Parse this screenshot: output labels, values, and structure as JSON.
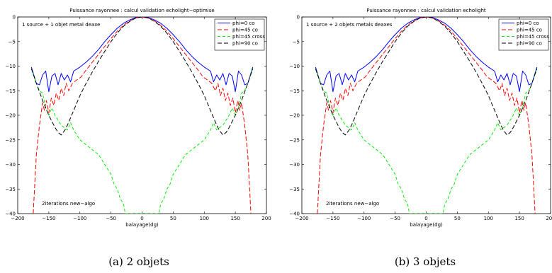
{
  "chart_data": [
    {
      "type": "line",
      "title": "Puissance rayonnee : calcul validation echolight−optimise",
      "xlabel": "balayage(dg)",
      "ylabel": "",
      "xlim": [
        -200,
        200
      ],
      "ylim": [
        -40,
        0
      ],
      "xticks": [
        "−200",
        "−150",
        "−100",
        "−50",
        "0",
        "50",
        "100",
        "150",
        "200"
      ],
      "yticks": [
        "0",
        "−5",
        "−10",
        "−15",
        "−20",
        "−25",
        "−30",
        "−35",
        "−40"
      ],
      "annotations": [
        "1 source + 1 objet metal deaxe",
        "2iterations new−algo"
      ],
      "legend_position": "top-right",
      "caption": "(a) 2 objets",
      "series": [
        {
          "name": "phi=0 co",
          "color": "#0000ff",
          "dash": "solid",
          "x": [
            -178,
            -170,
            -165,
            -160,
            -155,
            -150,
            -145,
            -140,
            -135,
            -130,
            -125,
            -120,
            -115,
            -110,
            -100,
            -90,
            -80,
            -70,
            -60,
            -50,
            -40,
            -30,
            -20,
            -10,
            0,
            10,
            20,
            30,
            40,
            50,
            60,
            70,
            80,
            90,
            100,
            110,
            115,
            120,
            125,
            130,
            135,
            140,
            145,
            150,
            155,
            160,
            165,
            170,
            178
          ],
          "y": [
            -10.2,
            -13.5,
            -13.8,
            -11.8,
            -11.0,
            -15.2,
            -12.0,
            -11.5,
            -13.8,
            -11.5,
            -12.8,
            -11.8,
            -13.2,
            -11.0,
            -10.2,
            -9.2,
            -8.0,
            -6.6,
            -5.0,
            -3.6,
            -2.3,
            -1.3,
            -0.6,
            -0.1,
            0,
            -0.1,
            -0.6,
            -1.3,
            -2.3,
            -3.6,
            -5.0,
            -6.6,
            -8.0,
            -9.2,
            -10.2,
            -11.0,
            -13.2,
            -11.8,
            -12.8,
            -11.5,
            -13.8,
            -11.5,
            -12.0,
            -15.2,
            -11.0,
            -11.8,
            -13.8,
            -13.5,
            -10.2
          ]
        },
        {
          "name": "phi=45 co",
          "color": "#ff0000",
          "dash": "6,3",
          "x": [
            -175,
            -173,
            -170,
            -165,
            -160,
            -157,
            -154,
            -150,
            -146,
            -142,
            -138,
            -134,
            -130,
            -126,
            -122,
            -118,
            -112,
            -105,
            -98,
            -90,
            -80,
            -70,
            -60,
            -50,
            -40,
            -30,
            -20,
            -10,
            0,
            10,
            20,
            30,
            40,
            50,
            60,
            70,
            80,
            90,
            98,
            105,
            112,
            118,
            122,
            126,
            130,
            134,
            138,
            142,
            146,
            150,
            154,
            157,
            160,
            165,
            170,
            173,
            175
          ],
          "y": [
            -40,
            -35,
            -28,
            -22,
            -17.5,
            -19,
            -17,
            -19.5,
            -16.5,
            -18,
            -15.5,
            -17,
            -14.5,
            -16,
            -13.5,
            -15,
            -13.5,
            -12.8,
            -12.2,
            -10.8,
            -9.2,
            -7.6,
            -6.0,
            -4.4,
            -2.9,
            -1.7,
            -0.8,
            -0.2,
            0,
            -0.2,
            -0.8,
            -1.7,
            -2.9,
            -4.4,
            -6.0,
            -7.6,
            -9.2,
            -10.8,
            -12.2,
            -12.8,
            -13.5,
            -15,
            -13.5,
            -16,
            -14.5,
            -17,
            -15.5,
            -18,
            -16.5,
            -19.5,
            -17,
            -19,
            -17.5,
            -22,
            -28,
            -35,
            -40
          ]
        },
        {
          "name": "phi=45 cross",
          "color": "#00ee00",
          "dash": "4,3",
          "x": [
            -178,
            -170,
            -165,
            -160,
            -155,
            -150,
            -145,
            -140,
            -135,
            -130,
            -125,
            -120,
            -115,
            -110,
            -100,
            -90,
            -80,
            -70,
            -60,
            -55,
            -50,
            -45,
            -40,
            -35,
            -30,
            -27,
            -25,
            25,
            27,
            30,
            35,
            40,
            45,
            50,
            55,
            60,
            70,
            80,
            90,
            100,
            110,
            115,
            120,
            125,
            130,
            135,
            140,
            145,
            150,
            155,
            160,
            165,
            170,
            178
          ],
          "y": [
            -10.5,
            -13.5,
            -15,
            -15.5,
            -18.5,
            -20,
            -18.5,
            -20,
            -21,
            -22,
            -22.5,
            -23,
            -21.5,
            -23,
            -25,
            -26,
            -27,
            -28,
            -30,
            -31,
            -32,
            -34,
            -35,
            -37,
            -38,
            -40,
            -40,
            -40,
            -40,
            -38,
            -37,
            -35,
            -34,
            -32,
            -31,
            -30,
            -28,
            -27,
            -26,
            -25,
            -23,
            -21.5,
            -23,
            -22.5,
            -22,
            -21,
            -20,
            -18.5,
            -20,
            -18.5,
            -15.5,
            -15,
            -13.5,
            -10.5
          ]
        },
        {
          "name": "phi=90 co",
          "color": "#000000",
          "dash": "6,3",
          "x": [
            -178,
            -170,
            -160,
            -150,
            -140,
            -135,
            -130,
            -127,
            -124,
            -120,
            -115,
            -110,
            -105,
            -100,
            -90,
            -80,
            -70,
            -60,
            -50,
            -40,
            -30,
            -20,
            -10,
            0,
            10,
            20,
            30,
            40,
            50,
            60,
            70,
            80,
            90,
            100,
            105,
            110,
            115,
            120,
            124,
            127,
            130,
            135,
            140,
            150,
            160,
            170,
            178
          ],
          "y": [
            -10.5,
            -13.5,
            -17,
            -20,
            -22.5,
            -23.5,
            -24,
            -23.5,
            -23,
            -22,
            -20.5,
            -19,
            -17.5,
            -16,
            -13.5,
            -11.2,
            -9.0,
            -7.0,
            -5.0,
            -3.3,
            -1.9,
            -0.9,
            -0.2,
            0,
            -0.2,
            -0.9,
            -1.9,
            -3.3,
            -5.0,
            -7.0,
            -9.0,
            -11.2,
            -13.5,
            -16,
            -17.5,
            -19,
            -20.5,
            -22,
            -23,
            -23.5,
            -24,
            -23.5,
            -22.5,
            -20,
            -17,
            -13.5,
            -10.5
          ]
        }
      ]
    },
    {
      "type": "line",
      "title": "Puissance rayonnee : calcul validation echolight",
      "xlabel": "balayage(dg)",
      "ylabel": "",
      "xlim": [
        -200,
        200
      ],
      "ylim": [
        -40,
        0
      ],
      "xticks": [
        "−200",
        "−150",
        "−100",
        "−50",
        "0",
        "50",
        "100",
        "150",
        "200"
      ],
      "yticks": [
        "0",
        "−5",
        "−10",
        "−15",
        "−20",
        "−25",
        "−30",
        "−35",
        "−40"
      ],
      "annotations": [
        "1 source + 2 objets metals deaxes",
        "2iterations new−algo"
      ],
      "legend_position": "top-right",
      "caption": "(b) 3 objets",
      "series": [
        {
          "name": "phi=0 co",
          "color": "#0000ff",
          "dash": "solid",
          "x": [
            -178,
            -170,
            -165,
            -160,
            -155,
            -150,
            -145,
            -140,
            -135,
            -130,
            -125,
            -120,
            -115,
            -110,
            -100,
            -90,
            -80,
            -70,
            -60,
            -50,
            -40,
            -30,
            -20,
            -10,
            0,
            10,
            20,
            30,
            40,
            50,
            60,
            70,
            80,
            90,
            100,
            110,
            115,
            120,
            125,
            130,
            135,
            140,
            145,
            150,
            155,
            160,
            165,
            170,
            178
          ],
          "y": [
            -10.2,
            -13.5,
            -13.8,
            -11.8,
            -11.0,
            -15.2,
            -12.0,
            -11.5,
            -13.8,
            -11.5,
            -12.8,
            -11.8,
            -13.2,
            -11.0,
            -10.2,
            -9.2,
            -8.0,
            -6.6,
            -5.0,
            -3.6,
            -2.3,
            -1.3,
            -0.6,
            -0.1,
            0,
            -0.1,
            -0.6,
            -1.3,
            -2.3,
            -3.6,
            -5.0,
            -6.6,
            -8.0,
            -9.2,
            -10.2,
            -11.0,
            -13.2,
            -11.8,
            -12.8,
            -11.5,
            -13.8,
            -11.5,
            -12.0,
            -15.2,
            -11.0,
            -11.8,
            -13.8,
            -13.5,
            -10.2
          ]
        },
        {
          "name": "phi=45 co",
          "color": "#ff0000",
          "dash": "6,3",
          "x": [
            -175,
            -173,
            -170,
            -165,
            -160,
            -157,
            -154,
            -150,
            -146,
            -142,
            -138,
            -134,
            -130,
            -126,
            -122,
            -118,
            -112,
            -105,
            -98,
            -90,
            -80,
            -70,
            -60,
            -50,
            -40,
            -30,
            -20,
            -10,
            0,
            10,
            20,
            30,
            40,
            50,
            60,
            70,
            80,
            90,
            98,
            105,
            112,
            118,
            122,
            126,
            130,
            134,
            138,
            142,
            146,
            150,
            154,
            157,
            160,
            165,
            170,
            173,
            175
          ],
          "y": [
            -40,
            -35,
            -28,
            -22,
            -17.5,
            -19,
            -17,
            -19.5,
            -16.5,
            -18,
            -15.5,
            -17,
            -14.5,
            -16,
            -13.5,
            -15,
            -13.5,
            -12.8,
            -12.2,
            -10.8,
            -9.2,
            -7.6,
            -6.0,
            -4.4,
            -2.9,
            -1.7,
            -0.8,
            -0.2,
            0,
            -0.2,
            -0.8,
            -1.7,
            -2.9,
            -4.4,
            -6.0,
            -7.6,
            -9.2,
            -10.8,
            -12.2,
            -12.8,
            -13.5,
            -15,
            -13.5,
            -16,
            -14.5,
            -17,
            -15.5,
            -18,
            -16.5,
            -19.5,
            -17,
            -19,
            -17.5,
            -22,
            -28,
            -35,
            -40
          ]
        },
        {
          "name": "phi=45 cross",
          "color": "#00ee00",
          "dash": "4,3",
          "x": [
            -178,
            -170,
            -165,
            -160,
            -155,
            -150,
            -145,
            -140,
            -135,
            -130,
            -125,
            -120,
            -115,
            -110,
            -100,
            -90,
            -80,
            -70,
            -60,
            -55,
            -50,
            -45,
            -40,
            -35,
            -30,
            -27,
            -25,
            25,
            27,
            30,
            35,
            40,
            45,
            50,
            55,
            60,
            70,
            80,
            90,
            100,
            110,
            115,
            120,
            125,
            130,
            135,
            140,
            145,
            150,
            155,
            160,
            165,
            170,
            178
          ],
          "y": [
            -10.5,
            -13.5,
            -15,
            -15.5,
            -18.5,
            -20,
            -18.5,
            -20,
            -21,
            -22,
            -22.5,
            -23,
            -21.5,
            -23,
            -25,
            -26,
            -27,
            -28,
            -30,
            -31,
            -32,
            -34,
            -35,
            -37,
            -38,
            -40,
            -40,
            -40,
            -40,
            -38,
            -37,
            -35,
            -34,
            -32,
            -31,
            -30,
            -28,
            -27,
            -26,
            -25,
            -23,
            -21.5,
            -23,
            -22.5,
            -22,
            -21,
            -20,
            -18.5,
            -20,
            -18.5,
            -15.5,
            -15,
            -13.5,
            -10.5
          ]
        },
        {
          "name": "phi=90 co",
          "color": "#000000",
          "dash": "6,3",
          "x": [
            -178,
            -170,
            -160,
            -150,
            -140,
            -135,
            -130,
            -127,
            -124,
            -120,
            -115,
            -110,
            -105,
            -100,
            -90,
            -80,
            -70,
            -60,
            -50,
            -40,
            -30,
            -20,
            -10,
            0,
            10,
            20,
            30,
            40,
            50,
            60,
            70,
            80,
            90,
            100,
            105,
            110,
            115,
            120,
            124,
            127,
            130,
            135,
            140,
            150,
            160,
            170,
            178
          ],
          "y": [
            -10.5,
            -13.5,
            -17,
            -20,
            -22.5,
            -23.5,
            -24,
            -23.5,
            -23,
            -22,
            -20.5,
            -19,
            -17.5,
            -16,
            -13.5,
            -11.2,
            -9.0,
            -7.0,
            -5.0,
            -3.3,
            -1.9,
            -0.9,
            -0.2,
            0,
            -0.2,
            -0.9,
            -1.9,
            -3.3,
            -5.0,
            -7.0,
            -9.0,
            -11.2,
            -13.5,
            -16,
            -17.5,
            -19,
            -20.5,
            -22,
            -23,
            -23.5,
            -24,
            -23.5,
            -22.5,
            -20,
            -17,
            -13.5,
            -10.5
          ]
        }
      ]
    }
  ]
}
